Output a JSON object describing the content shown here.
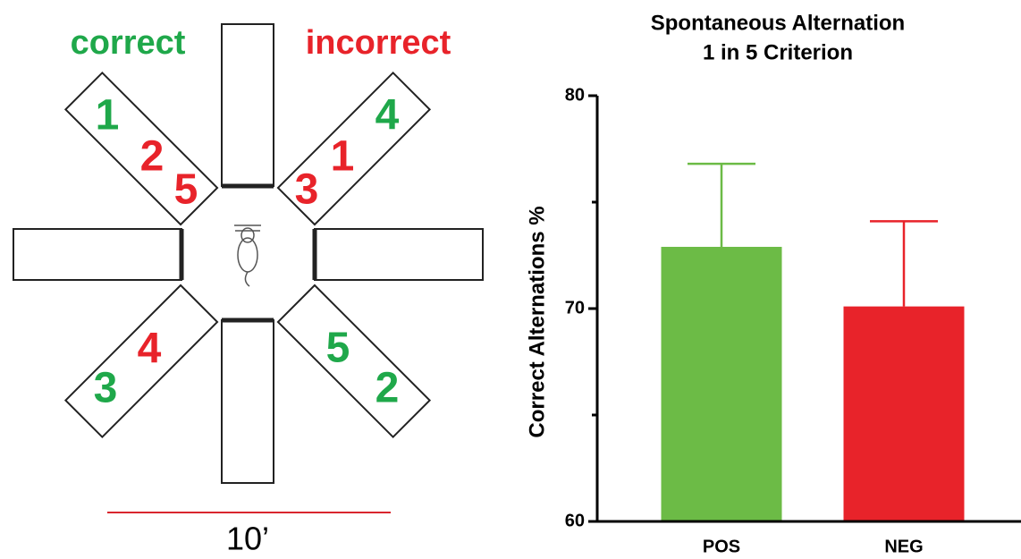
{
  "diagram": {
    "correct": "correct",
    "incorrect": "incorrect",
    "arm_numbers": [
      "1",
      "2",
      "5",
      "4",
      "1",
      "3",
      "4",
      "3",
      "5",
      "2"
    ],
    "scale": "10’"
  },
  "chart_data": {
    "type": "bar",
    "title": "Spontaneous Alternation",
    "subtitle": "1 in 5 Criterion",
    "y_label": "Correct Alternations %",
    "categories": [
      "POS",
      "NEG"
    ],
    "values": [
      72.9,
      70.1
    ],
    "errors": [
      3.9,
      4.0
    ],
    "colors": [
      "#6cbb46",
      "#e8232a"
    ],
    "ylim": [
      60,
      80
    ],
    "yticks": [
      60,
      70,
      80
    ],
    "minor_yticks": [
      65,
      75
    ]
  }
}
